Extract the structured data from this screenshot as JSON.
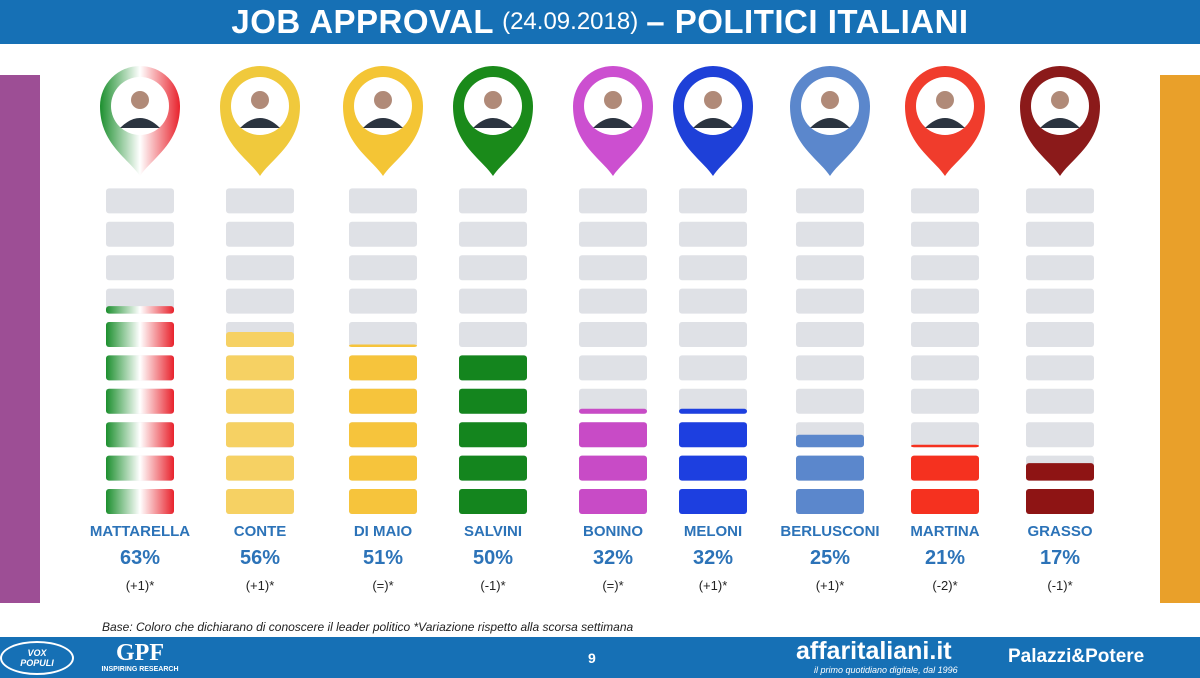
{
  "header": {
    "title_main": "JOB APPROVAL",
    "title_date": "(24.09.2018)",
    "title_suffix": "– POLITICI ITALIANI"
  },
  "chart_data": {
    "type": "bar",
    "categories": [
      "MATTARELLA",
      "CONTE",
      "DI MAIO",
      "SALVINI",
      "BONINO",
      "MELONI",
      "BERLUSCONI",
      "MARTINA",
      "GRASSO"
    ],
    "values": [
      63,
      56,
      51,
      50,
      32,
      32,
      25,
      21,
      17
    ],
    "value_labels": [
      "63%",
      "56%",
      "51%",
      "50%",
      "32%",
      "32%",
      "25%",
      "21%",
      "17%"
    ],
    "changes": [
      "(+1)*",
      "(+1)*",
      "(=)*",
      "(-1)*",
      "(=)*",
      "(+1)*",
      "(+1)*",
      "(-2)*",
      "(-1)*"
    ],
    "colors": [
      "tricolore",
      "#f6d163",
      "#f6c43c",
      "#14851e",
      "#c84bc6",
      "#1d3fe0",
      "#5b87cc",
      "#f5311f",
      "#8e1414"
    ],
    "pin_colors": [
      "tricolore",
      "#f0c93c",
      "#f4c535",
      "#1a8a1a",
      "#cc4fd0",
      "#1e40d8",
      "#5b87cc",
      "#f03c2c",
      "#8b1a1a"
    ],
    "ylim": [
      0,
      100
    ]
  },
  "base_note": "Base: Coloro che dichiarano di conoscere il leader politico  *Variazione rispetto alla scorsa settimana",
  "footer": {
    "vox_line1": "VOX",
    "vox_line2": "POPULI",
    "gpf": "GPF",
    "gpf_tagline": "INSPIRING RESEARCH",
    "page_number": "9",
    "affari": "affaritaliani.it",
    "affari_tagline": "il primo quotidiano digitale, dal 1996",
    "palazzi": "Palazzi&Potere"
  }
}
